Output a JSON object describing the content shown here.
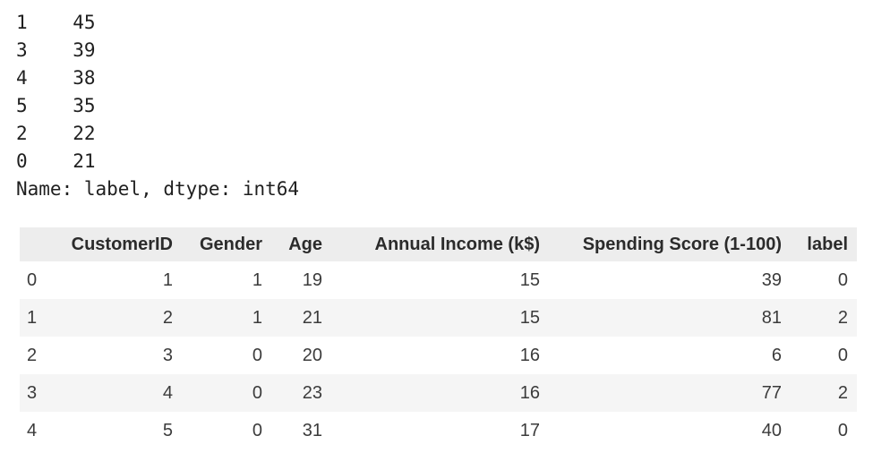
{
  "series_output": {
    "lines": [
      "1    45",
      "3    39",
      "4    38",
      "5    35",
      "2    22",
      "0    21",
      "Name: label, dtype: int64"
    ],
    "name": "label",
    "dtype": "int64"
  },
  "table": {
    "columns": [
      "",
      "CustomerID",
      "Gender",
      "Age",
      "Annual Income (k$)",
      "Spending Score (1-100)",
      "label"
    ],
    "rows": [
      {
        "index": "0",
        "cells": [
          "1",
          "1",
          "19",
          "15",
          "39",
          "0"
        ]
      },
      {
        "index": "1",
        "cells": [
          "2",
          "1",
          "21",
          "15",
          "81",
          "2"
        ]
      },
      {
        "index": "2",
        "cells": [
          "3",
          "0",
          "20",
          "16",
          "6",
          "0"
        ]
      },
      {
        "index": "3",
        "cells": [
          "4",
          "0",
          "23",
          "16",
          "77",
          "2"
        ]
      },
      {
        "index": "4",
        "cells": [
          "5",
          "0",
          "31",
          "17",
          "40",
          "0"
        ]
      }
    ],
    "colors": {
      "header_background": "#ededed",
      "stripe_background": "#f5f5f5",
      "text": "#3b3b3b",
      "mono_text": "#1f1f1f",
      "page_background": "#ffffff"
    }
  }
}
